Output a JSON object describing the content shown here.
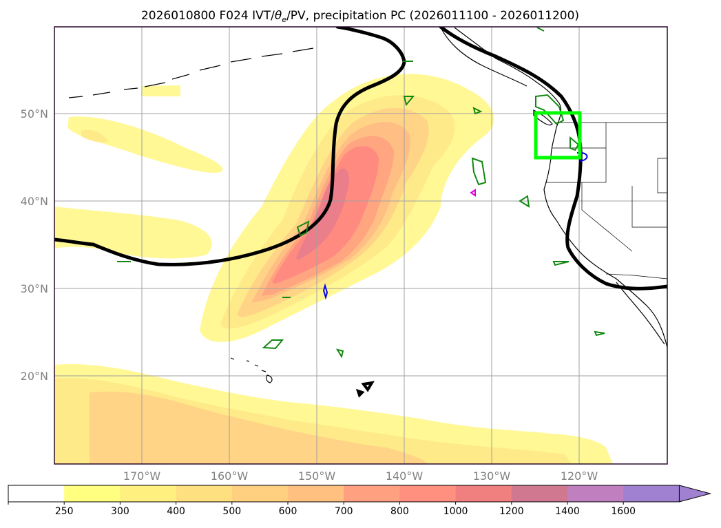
{
  "title": {
    "prefix": "2026010800 F024 IVT/",
    "theta": "θ",
    "sub": "e",
    "suffix": "/PV, precipitation PC (2026011100 - 2026011200)"
  },
  "lon_labels": [
    "170°W",
    "160°W",
    "150°W",
    "140°W",
    "130°W",
    "120°W"
  ],
  "lat_labels": [
    "50°N",
    "40°N",
    "30°N",
    "20°N"
  ],
  "colorbar": {
    "ticks": [
      "250",
      "300",
      "400",
      "500",
      "600",
      "700",
      "800",
      "1000",
      "1200",
      "1400",
      "1600"
    ],
    "colors": [
      "#ffffff",
      "#ffff80",
      "#fff080",
      "#ffe080",
      "#ffd080",
      "#ffc080",
      "#ffa080",
      "#ff9080",
      "#f08080",
      "#d07890",
      "#c080c0",
      "#a080d0"
    ]
  },
  "colors": {
    "ivt_fill": [
      "#fff78a",
      "#ffe888",
      "#ffd286",
      "#ffbc84",
      "#ffa280",
      "#ff8880",
      "#e87c8c"
    ],
    "pv_contour": "#000000",
    "precip_green": "#118811",
    "precip_blue": "#0000ee",
    "precip_magenta": "#dd00dd",
    "highlight_box": "#00ff00",
    "grid": "#a0a0a0",
    "axis_label": "#808080",
    "frame": "#2a0a2a"
  }
}
